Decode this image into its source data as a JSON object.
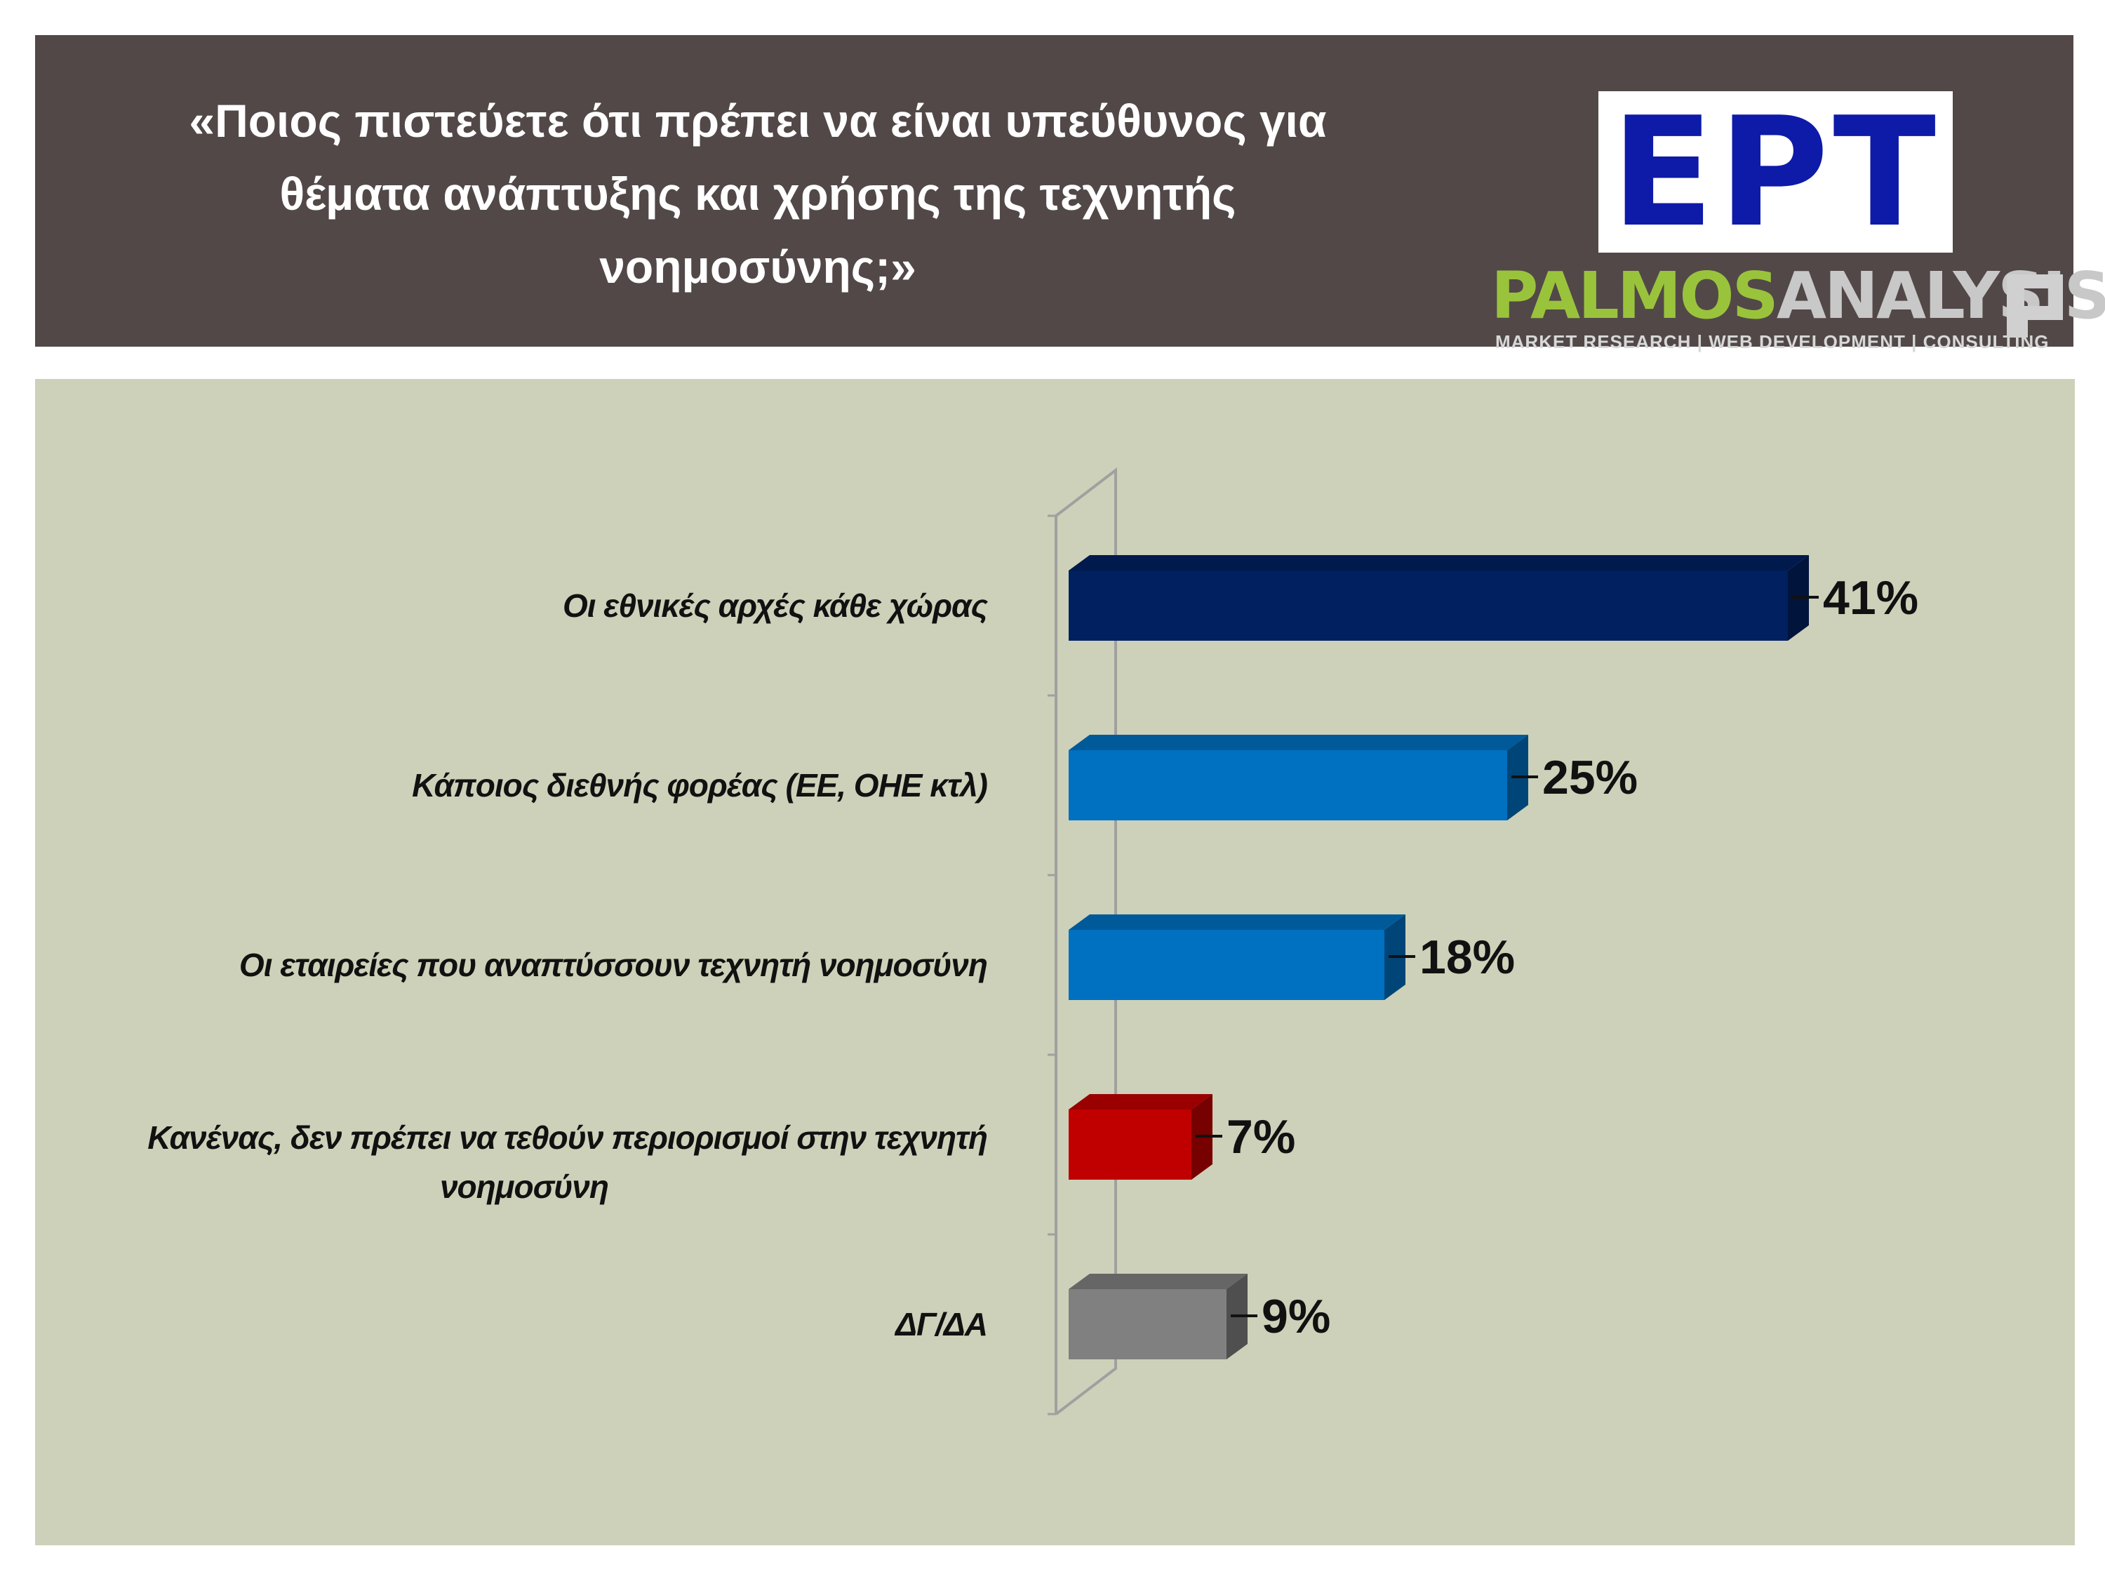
{
  "header": {
    "title_lines": [
      "«Ποιος πιστεύετε ότι πρέπει να είναι υπεύθυνος για",
      "θέματα ανάπτυξης και χρήσης της τεχνητής",
      "νοημοσύνης;»"
    ],
    "logo_ert": "ΕΡΤ",
    "logo_palmos_part1": "PALMOS",
    "logo_palmos_part2": "ANALYSIS",
    "logo_palmos_tagline": "MARKET RESEARCH | WEB DEVELOPMENT | CONSULTING"
  },
  "chart_data": {
    "type": "bar",
    "orientation": "horizontal",
    "style": "3d",
    "grid": false,
    "legend": "none",
    "xlim": [
      0,
      50
    ],
    "categories": [
      "Οι εθνικές αρχές κάθε χώρας",
      "Κάποιος διεθνής φορέας (ΕΕ, ΟΗΕ κτλ)",
      "Οι εταιρείες που αναπτύσσουν τεχνητή νοημοσύνη",
      "Κανένας, δεν πρέπει να τεθούν περιορισμοί στην τεχνητή νοημοσύνη",
      "ΔΓ/ΔΑ"
    ],
    "category_label_lines": [
      [
        "Οι εθνικές αρχές κάθε χώρας"
      ],
      [
        "Κάποιος διεθνής φορέας (ΕΕ, ΟΗΕ κτλ)"
      ],
      [
        "Οι εταιρείες που αναπτύσσουν τεχνητή νοημοσύνη"
      ],
      [
        "Κανένας, δεν πρέπει να τεθούν περιορισμοί στην τεχνητή",
        "νοημοσύνη"
      ],
      [
        "ΔΓ/ΔΑ"
      ]
    ],
    "values": [
      41,
      25,
      18,
      7,
      9
    ],
    "value_labels": [
      "41%",
      "25%",
      "18%",
      "7%",
      "9%"
    ],
    "colors": [
      "#002060",
      "#0070c0",
      "#0070c0",
      "#c00000",
      "#808080"
    ]
  }
}
